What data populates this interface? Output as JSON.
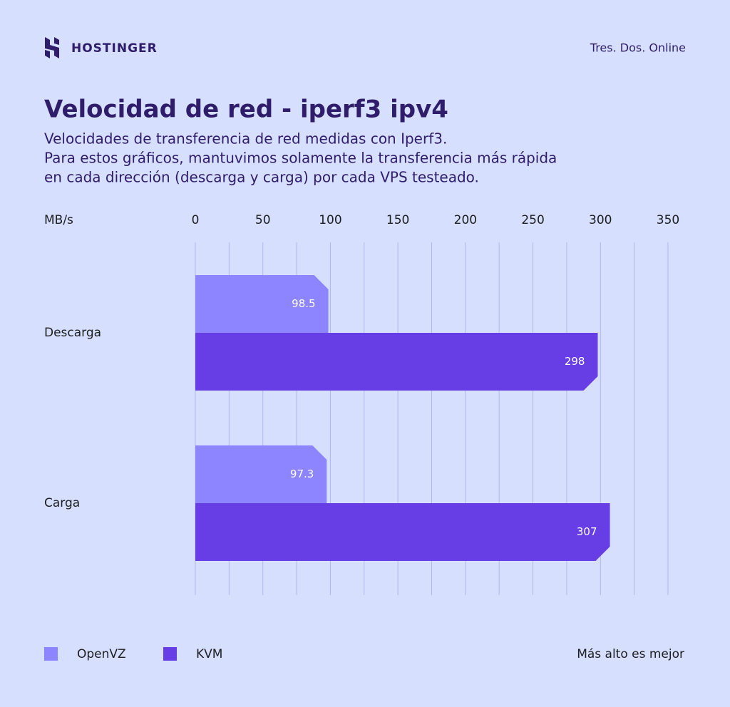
{
  "chart_data": {
    "type": "bar",
    "orientation": "horizontal",
    "brand": "HOSTINGER",
    "source": "Tres. Dos. Online",
    "title": "Velocidad de red - iperf3 ipv4",
    "subtitle": [
      "Velocidades de transferencia de red medidas con Iperf3.",
      "Para estos gráficos, mantuvimos solamente la transferencia más rápida",
      "en cada dirección (descarga y carga) por cada VPS testeado."
    ],
    "x_label": "MB/s",
    "categories": [
      "Descarga",
      "Carga"
    ],
    "series": [
      {
        "name": "OpenVZ",
        "color": "#8c85ff",
        "values": [
          98.5,
          97.3
        ]
      },
      {
        "name": "KVM",
        "color": "#673de6",
        "values": [
          298,
          307
        ]
      }
    ],
    "xlim": [
      0,
      350
    ],
    "xticks": [
      0,
      50,
      100,
      150,
      200,
      250,
      300,
      350
    ],
    "minor_xticks": [
      25,
      75,
      125,
      175,
      225,
      275,
      325
    ],
    "grid": true,
    "note": "Más alto es mejor"
  }
}
